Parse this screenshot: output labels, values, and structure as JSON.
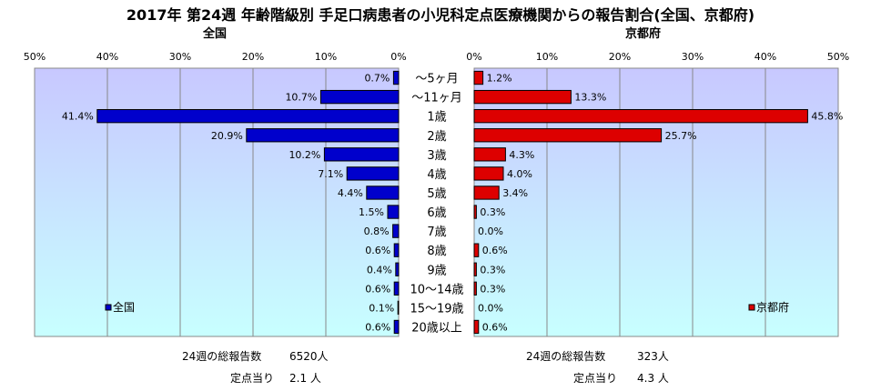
{
  "title": "2017年 第24週 年齢階級別 手足口病患者の小児科定点医療機関からの報告割合(全国、京都府)",
  "colors": {
    "national": "#0000cc",
    "kyoto": "#dd0000",
    "grad_top": "#c8c8ff",
    "grad_bottom": "#c8ffff"
  },
  "chart_data": [
    {
      "type": "bar",
      "orientation": "horizontal",
      "subtitle": "全国",
      "direction": "right-to-left",
      "categories": [
        "～5ヶ月",
        "～11ヶ月",
        "1歳",
        "2歳",
        "3歳",
        "4歳",
        "5歳",
        "6歳",
        "7歳",
        "8歳",
        "9歳",
        "10～14歳",
        "15～19歳",
        "20歳以上"
      ],
      "series": [
        {
          "name": "全国",
          "values": [
            0.7,
            10.7,
            41.4,
            20.9,
            10.2,
            7.1,
            4.4,
            1.5,
            0.8,
            0.6,
            0.4,
            0.6,
            0.1,
            0.6
          ]
        }
      ],
      "value_labels": [
        "0.7%",
        "10.7%",
        "41.4%",
        "20.9%",
        "10.2%",
        "7.1%",
        "4.4%",
        "1.5%",
        "0.8%",
        "0.6%",
        "0.4%",
        "0.6%",
        "0.1%",
        "0.6%"
      ],
      "xlim": [
        0,
        50
      ],
      "xticks": [
        "50%",
        "40%",
        "30%",
        "20%",
        "10%",
        "0%"
      ],
      "grid": true,
      "legend": "bottom-left"
    },
    {
      "type": "bar",
      "orientation": "horizontal",
      "subtitle": "京都府",
      "direction": "left-to-right",
      "categories": [
        "～5ヶ月",
        "～11ヶ月",
        "1歳",
        "2歳",
        "3歳",
        "4歳",
        "5歳",
        "6歳",
        "7歳",
        "8歳",
        "9歳",
        "10～14歳",
        "15～19歳",
        "20歳以上"
      ],
      "series": [
        {
          "name": "京都府",
          "values": [
            1.2,
            13.3,
            45.8,
            25.7,
            4.3,
            4.0,
            3.4,
            0.3,
            0.0,
            0.6,
            0.3,
            0.3,
            0.0,
            0.6
          ]
        }
      ],
      "value_labels": [
        "1.2%",
        "13.3%",
        "45.8%",
        "25.7%",
        "4.3%",
        "4.0%",
        "3.4%",
        "0.3%",
        "0.0%",
        "0.6%",
        "0.3%",
        "0.3%",
        "0.0%",
        "0.6%"
      ],
      "xlim": [
        0,
        50
      ],
      "xticks": [
        "0%",
        "10%",
        "20%",
        "30%",
        "40%",
        "50%"
      ],
      "grid": true,
      "legend": "bottom-right"
    }
  ],
  "footer": {
    "national": {
      "total_label": "24週の総報告数",
      "total_value": "6520人",
      "per_label": "定点当り",
      "per_value": "2.1 人"
    },
    "kyoto": {
      "total_label": "24週の総報告数",
      "total_value": "323人",
      "per_label": "定点当り",
      "per_value": "4.3 人"
    }
  }
}
